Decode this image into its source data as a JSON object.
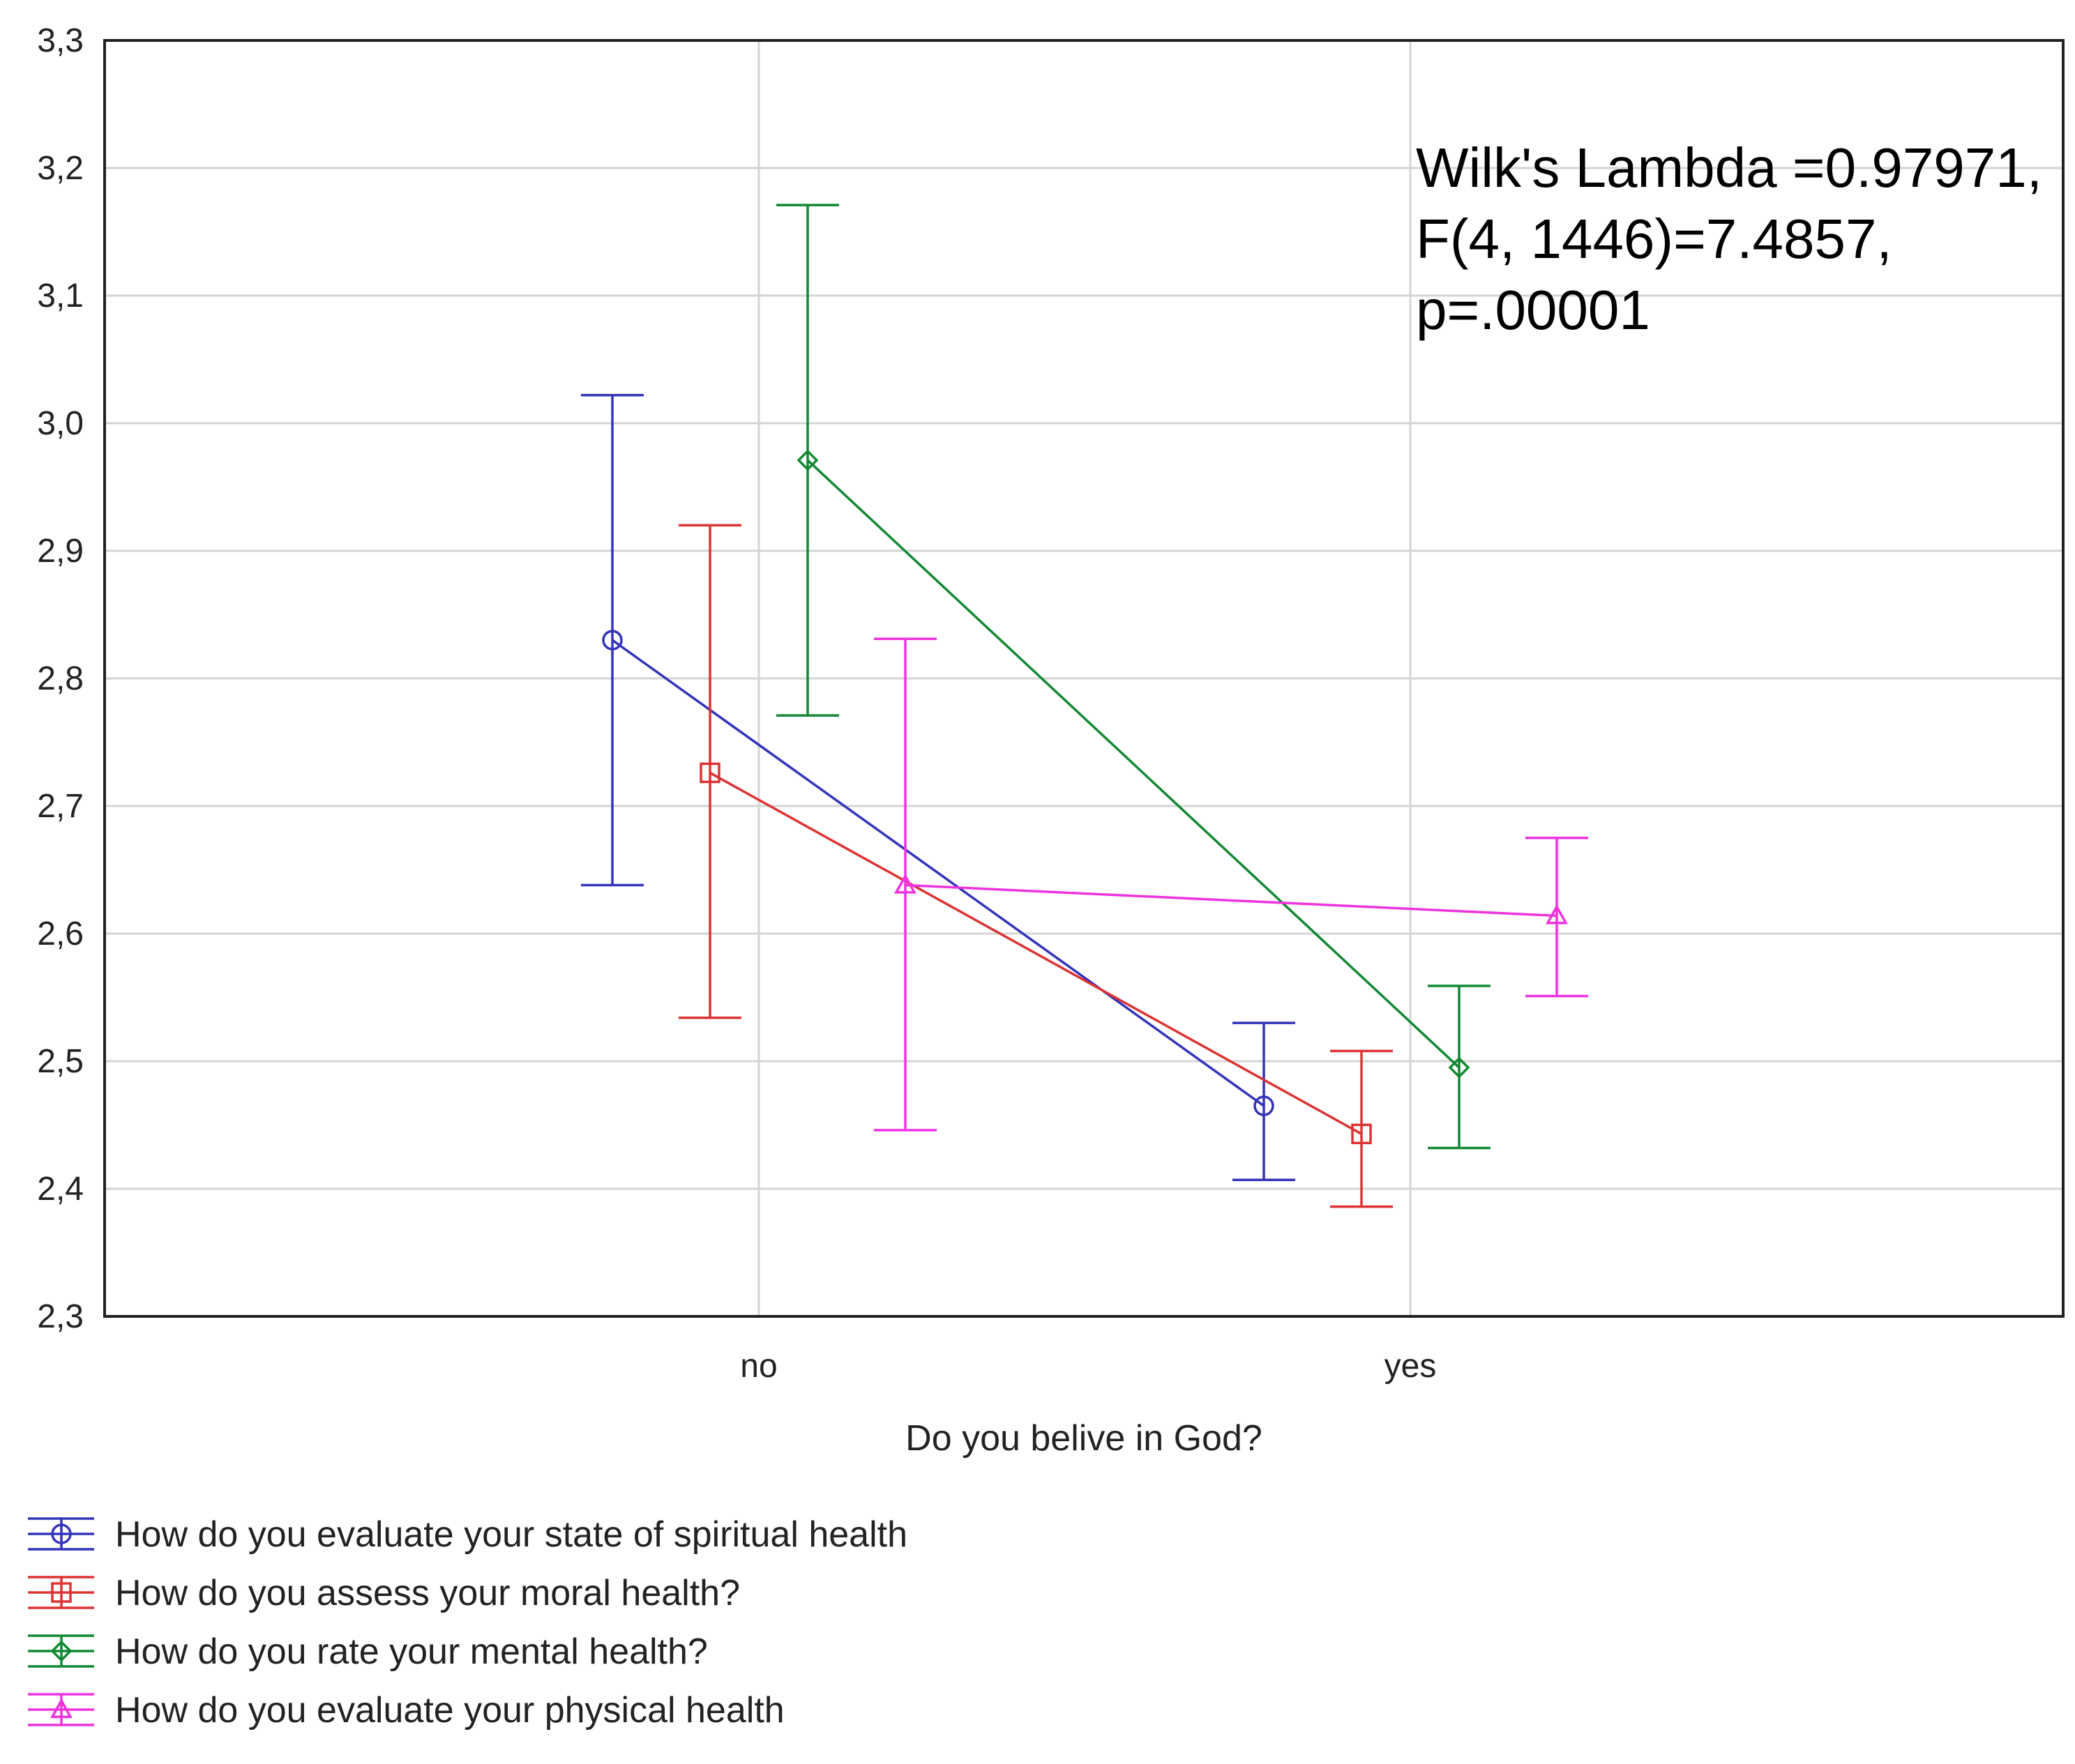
{
  "chart_data": {
    "type": "line",
    "title": "",
    "xlabel": "Do you belive in God?",
    "ylabel": "",
    "categories": [
      "no",
      "yes"
    ],
    "ylim": [
      2.3,
      3.3
    ],
    "yticks": [
      2.3,
      2.4,
      2.5,
      2.6,
      2.7,
      2.8,
      2.9,
      3.0,
      3.1,
      3.2,
      3.3
    ],
    "ytick_labels": [
      "2,3",
      "2,4",
      "2,5",
      "2,6",
      "2,7",
      "2,8",
      "2,9",
      "3,0",
      "3,1",
      "3,2",
      "3,3"
    ],
    "grid": true,
    "legend_position": "bottom-left",
    "annotation": [
      "Wilk's Lambda =0.97971,",
      "F(4, 1446)=7.4857,",
      "p=.00001"
    ],
    "series": [
      {
        "name": "How do you evaluate your state of spiritual health",
        "color": "#3333bb",
        "marker": "circle",
        "values": [
          2.83,
          2.465
        ],
        "err_low": [
          2.638,
          2.407
        ],
        "err_high": [
          3.022,
          2.53
        ]
      },
      {
        "name": "How do you assess your moral health?",
        "color": "#dd3333",
        "marker": "square",
        "values": [
          2.726,
          2.443
        ],
        "err_low": [
          2.534,
          2.386
        ],
        "err_high": [
          2.92,
          2.508
        ]
      },
      {
        "name": "How do you rate your mental health?",
        "color": "#118833",
        "marker": "diamond",
        "values": [
          2.971,
          2.495
        ],
        "err_low": [
          2.771,
          2.432
        ],
        "err_high": [
          3.171,
          2.559
        ]
      },
      {
        "name": "How do you evaluate your physical health",
        "color": "#ee33dd",
        "marker": "triangle",
        "values": [
          2.638,
          2.614
        ],
        "err_low": [
          2.446,
          2.551
        ],
        "err_high": [
          2.831,
          2.675
        ]
      }
    ]
  }
}
